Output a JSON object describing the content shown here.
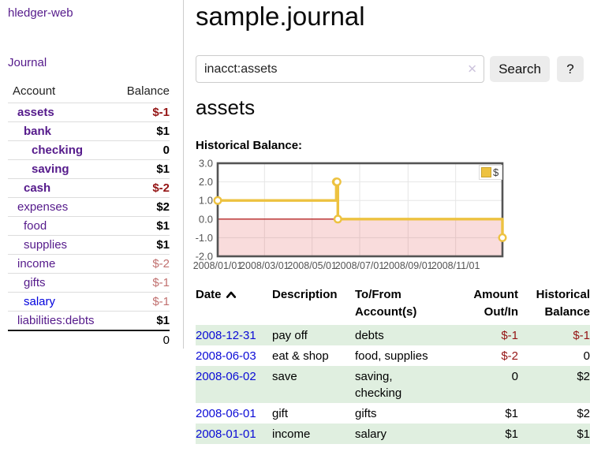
{
  "colors": {
    "link_purple": "#551a8b",
    "link_blue": "#0000dd",
    "negative_strong": "#941414",
    "negative_soft": "#c1706f",
    "row_green": "#e0efe0",
    "button_gray": "#ececec",
    "chart_line_gold": "#edc240",
    "chart_zero_line": "#aa0000",
    "chart_border": "#545454",
    "chart_grid": "#e6e6e6",
    "chart_negative_fill": "rgba(220,60,60,0.18)",
    "axis_label_gray": "#545454"
  },
  "sidebar": {
    "brand": "hledger-web",
    "nav_journal": "Journal",
    "accounts_table": {
      "col_account": "Account",
      "col_balance": "Balance",
      "rows": [
        {
          "name": "assets",
          "level": 1,
          "bold": true,
          "balance": "$-1",
          "balance_style": "bal-neg",
          "link": "purple"
        },
        {
          "name": "bank",
          "level": 2,
          "bold": true,
          "balance": "$1",
          "balance_style": "bal-pos",
          "link": "purple"
        },
        {
          "name": "checking",
          "level": 3,
          "bold": true,
          "balance": "0",
          "balance_style": "bal-pos",
          "link": "purple"
        },
        {
          "name": "saving",
          "level": 3,
          "bold": true,
          "balance": "$1",
          "balance_style": "bal-pos",
          "link": "purple"
        },
        {
          "name": "cash",
          "level": 2,
          "bold": true,
          "balance": "$-2",
          "balance_style": "bal-neg",
          "link": "purple"
        },
        {
          "name": "expenses",
          "level": 1,
          "bold": false,
          "balance": "$2",
          "balance_style": "bal-pos",
          "link": "purple"
        },
        {
          "name": "food",
          "level": 2,
          "bold": false,
          "balance": "$1",
          "balance_style": "bal-pos",
          "link": "purple"
        },
        {
          "name": "supplies",
          "level": 2,
          "bold": false,
          "balance": "$1",
          "balance_style": "bal-pos",
          "link": "purple"
        },
        {
          "name": "income",
          "level": 1,
          "bold": false,
          "balance": "$-2",
          "balance_style": "bal-soft",
          "link": "purple"
        },
        {
          "name": "gifts",
          "level": 2,
          "bold": false,
          "balance": "$-1",
          "balance_style": "bal-soft",
          "link": "purple"
        },
        {
          "name": "salary",
          "level": 2,
          "bold": false,
          "balance": "$-1",
          "balance_style": "bal-soft",
          "link": "blue"
        },
        {
          "name": "liabilities:debts",
          "level": 1,
          "bold": false,
          "balance": "$1",
          "balance_style": "bal-pos",
          "link": "purple"
        }
      ],
      "total": "0"
    }
  },
  "header": {
    "title": "sample.journal"
  },
  "search": {
    "value": "inacct:assets",
    "clear_icon": "✕",
    "button": "Search",
    "help_button": "?"
  },
  "account_page": {
    "title": "assets",
    "chart_label": "Historical Balance:"
  },
  "chart_data": {
    "type": "line",
    "step": true,
    "series": [
      {
        "name": "$",
        "color": "#edc240",
        "points": [
          [
            "2008-01-01",
            1
          ],
          [
            "2008-06-01",
            2
          ],
          [
            "2008-06-02",
            2
          ],
          [
            "2008-06-03",
            0
          ],
          [
            "2008-12-31",
            -1
          ]
        ]
      }
    ],
    "x_range": [
      "2008-01-01",
      "2008-12-31"
    ],
    "x_ticks": [
      "2008/01/01",
      "2008/03/01",
      "2008/05/01",
      "2008/07/01",
      "2008/09/01",
      "2008/11/01"
    ],
    "y_ticks": [
      3,
      2,
      1,
      0,
      -1,
      -2
    ],
    "ylim": [
      -2,
      3
    ],
    "legend": "$",
    "legend_position": "top-right",
    "negative_region_shaded": true,
    "grid": true
  },
  "transactions": {
    "headers": {
      "date": "Date",
      "description": "Description",
      "accounts": "To/From Account(s)",
      "amount": "Amount Out/In",
      "balance": "Historical Balance"
    },
    "sort_icon": "chevron-up",
    "rows": [
      {
        "date": "2008-12-31",
        "description": "pay off",
        "accounts": "debts",
        "amount": "$-1",
        "amount_negative": true,
        "balance": "$-1",
        "balance_negative": true
      },
      {
        "date": "2008-06-03",
        "description": "eat & shop",
        "accounts": "food, supplies",
        "amount": "$-2",
        "amount_negative": true,
        "balance": "0",
        "balance_negative": false
      },
      {
        "date": "2008-06-02",
        "description": "save",
        "accounts": "saving, checking",
        "amount": "0",
        "amount_negative": false,
        "balance": "$2",
        "balance_negative": false
      },
      {
        "date": "2008-06-01",
        "description": "gift",
        "accounts": "gifts",
        "amount": "$1",
        "amount_negative": false,
        "balance": "$2",
        "balance_negative": false
      },
      {
        "date": "2008-01-01",
        "description": "income",
        "accounts": "salary",
        "amount": "$1",
        "amount_negative": false,
        "balance": "$1",
        "balance_negative": false
      }
    ]
  }
}
